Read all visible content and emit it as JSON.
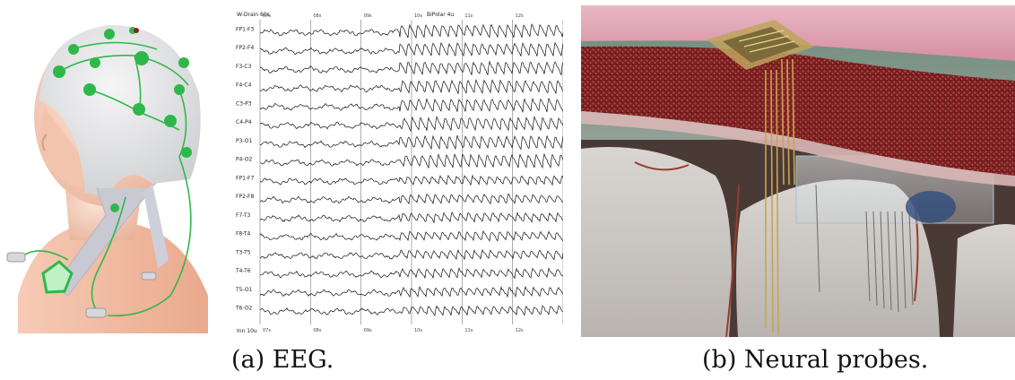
{
  "figure": {
    "caption_a": "(a) EEG.",
    "caption_b": "(b) Neural probes."
  },
  "eeg": {
    "header_left": "W-Drain 60s",
    "header_mid": "BiPolar 4u",
    "footer_left": "Inn 10u",
    "times_top": [
      "07s",
      "08s",
      "09s",
      "10s",
      "11s",
      "12s"
    ],
    "times_bottom": [
      "07s",
      "08s",
      "09s",
      "10s",
      "11s",
      "12s"
    ],
    "channels": [
      "FP1-F3",
      "FP2-F4",
      "F3-C3",
      "F4-C4",
      "C3-P3",
      "C4-P4",
      "P3-O1",
      "P4-O2",
      "FP1-F7",
      "FP2-F8",
      "F7-T3",
      "F8-T4",
      "T3-T5",
      "T4-T6",
      "T5-O1",
      "T6-O2"
    ],
    "seizure_onset_fraction": 0.46
  },
  "colors": {
    "electrode": "#2fb84a",
    "cap": "#e4e4e6",
    "skin": "#f2c9b0",
    "tissue_red": "#8e2a28",
    "probe_gold": "#c8a452"
  }
}
